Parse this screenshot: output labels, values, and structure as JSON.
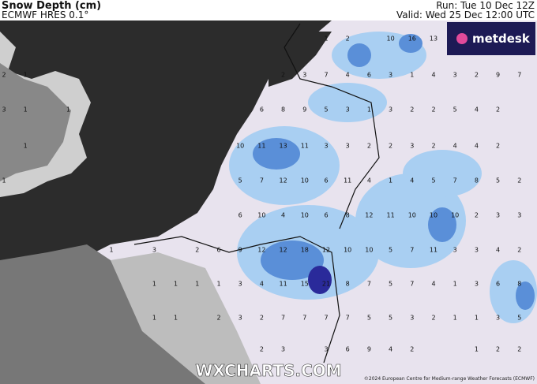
{
  "header": {
    "title": "Snow Depth (cm)",
    "model": "ECMWF HRES 0.1°",
    "run": "Run: Tue 10 Dec 12Z",
    "valid": "Valid: Wed 25 Dec 12:00 UTC"
  },
  "logo": "metdesk",
  "watermark": "WXCHARTS.COM",
  "copyright": "©2024 European Centre for Medium-range Weather Forecasts (ECMWF)",
  "map_labels": [
    [
      null,
      null,
      null,
      null,
      null,
      null,
      null,
      null,
      null,
      null,
      null,
      null,
      null,
      null,
      null,
      "1",
      "2",
      null,
      "10",
      "16",
      "13",
      null,
      null,
      null,
      null
    ],
    [
      "2",
      "1",
      null,
      null,
      null,
      null,
      null,
      null,
      null,
      null,
      null,
      null,
      null,
      "2",
      "3",
      "7",
      "4",
      "6",
      "3",
      "1",
      "4",
      "3",
      "2",
      "9",
      "7"
    ],
    [
      "3",
      "1",
      null,
      "1",
      null,
      null,
      null,
      null,
      null,
      null,
      null,
      null,
      "6",
      "8",
      "9",
      "5",
      "3",
      "1",
      "3",
      "2",
      "2",
      "5",
      "4",
      "2",
      null
    ],
    [
      null,
      "1",
      null,
      null,
      null,
      null,
      null,
      null,
      null,
      null,
      null,
      "10",
      "11",
      "13",
      "11",
      "3",
      "3",
      "2",
      "2",
      "3",
      "2",
      "4",
      "4",
      "2",
      null
    ],
    [
      "1",
      null,
      null,
      null,
      null,
      null,
      null,
      null,
      null,
      null,
      null,
      "5",
      "7",
      "12",
      "10",
      "6",
      "11",
      "4",
      "1",
      "4",
      "5",
      "7",
      "8",
      "5",
      "2"
    ],
    [
      null,
      null,
      null,
      null,
      null,
      null,
      null,
      null,
      null,
      null,
      null,
      "6",
      "10",
      "4",
      "10",
      "6",
      "8",
      "12",
      "11",
      "10",
      "10",
      "10",
      "2",
      "3",
      "3"
    ],
    [
      null,
      null,
      null,
      null,
      null,
      "1",
      null,
      "3",
      null,
      "2",
      "6",
      "9",
      "12",
      "12",
      "18",
      "12",
      "10",
      "10",
      "5",
      "7",
      "11",
      "3",
      "3",
      "4",
      "2"
    ],
    [
      null,
      null,
      null,
      null,
      null,
      null,
      null,
      "1",
      "1",
      "1",
      "1",
      "3",
      "4",
      "11",
      "15",
      "21",
      "8",
      "7",
      "5",
      "7",
      "4",
      "1",
      "3",
      "6",
      "8"
    ],
    [
      null,
      null,
      null,
      null,
      null,
      null,
      null,
      "1",
      "1",
      null,
      "2",
      "3",
      "2",
      "7",
      "7",
      "7",
      "7",
      "5",
      "5",
      "3",
      "2",
      "1",
      "1",
      "3",
      "5"
    ],
    [
      null,
      null,
      null,
      null,
      null,
      null,
      null,
      null,
      null,
      null,
      null,
      null,
      "2",
      "3",
      null,
      "3",
      "6",
      "9",
      "4",
      "2",
      null,
      null,
      "1",
      "2",
      "2"
    ]
  ]
}
